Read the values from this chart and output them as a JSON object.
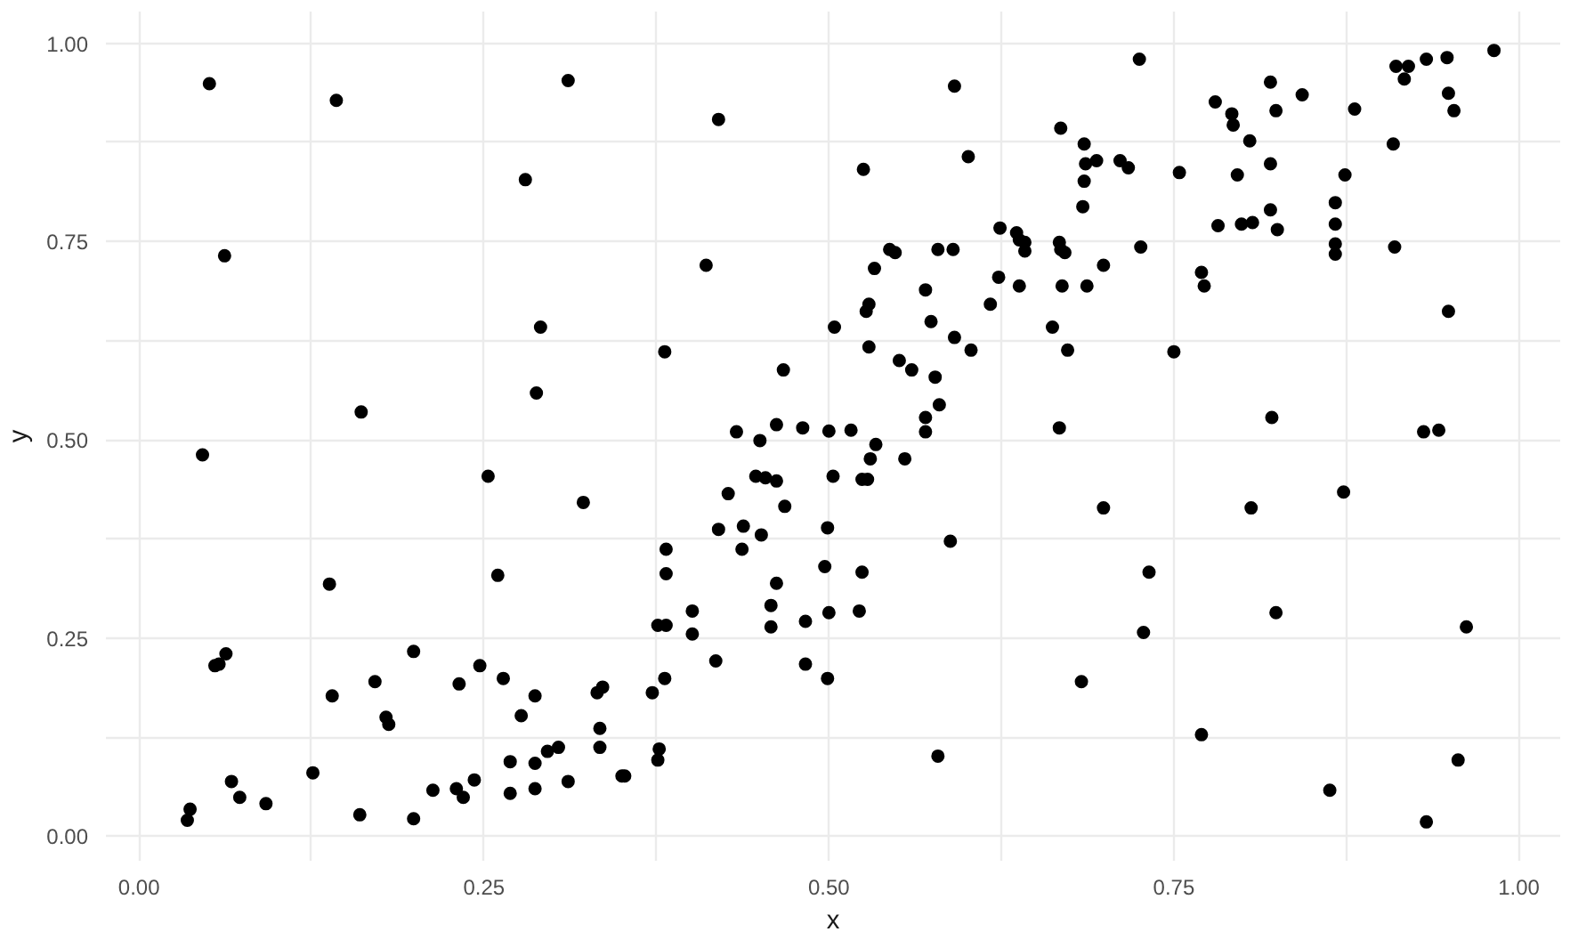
{
  "chart_data": {
    "type": "scatter",
    "xlabel": "x",
    "ylabel": "y",
    "marker": "circle",
    "grid": true,
    "xlim": [
      -0.024,
      1.03
    ],
    "ylim": [
      -0.031,
      1.04
    ],
    "xticks": [
      {
        "value": 0,
        "label": "0.00"
      },
      {
        "value": 0.125,
        "label": null
      },
      {
        "value": 0.25,
        "label": "0.25"
      },
      {
        "value": 0.375,
        "label": null
      },
      {
        "value": 0.5,
        "label": "0.50"
      },
      {
        "value": 0.625,
        "label": null
      },
      {
        "value": 0.75,
        "label": "0.75"
      },
      {
        "value": 0.875,
        "label": null
      },
      {
        "value": 1,
        "label": "1.00"
      }
    ],
    "yticks": [
      {
        "value": 0,
        "label": "0.00"
      },
      {
        "value": 0.125,
        "label": null
      },
      {
        "value": 0.25,
        "label": "0.25"
      },
      {
        "value": 0.375,
        "label": null
      },
      {
        "value": 0.5,
        "label": "0.50"
      },
      {
        "value": 0.625,
        "label": null
      },
      {
        "value": 0.75,
        "label": "0.75"
      },
      {
        "value": 0.875,
        "label": null
      },
      {
        "value": 1,
        "label": "1.00"
      }
    ],
    "series": [
      {
        "color": "#000000",
        "x": [
          0.035,
          0.037,
          0.051,
          0.143,
          0.311,
          0.28,
          0.062,
          0.291,
          0.288,
          0.161,
          0.046,
          0.253,
          0.26,
          0.322,
          0.138,
          0.055,
          0.058,
          0.063,
          0.14,
          0.171,
          0.179,
          0.181,
          0.199,
          0.232,
          0.247,
          0.264,
          0.277,
          0.287,
          0.332,
          0.336,
          0.334,
          0.334,
          0.067,
          0.073,
          0.092,
          0.126,
          0.16,
          0.199,
          0.213,
          0.23,
          0.235,
          0.243,
          0.269,
          0.269,
          0.287,
          0.287,
          0.296,
          0.304,
          0.311,
          0.433,
          0.45,
          0.462,
          0.481,
          0.5,
          0.516,
          0.57,
          0.667,
          0.534,
          0.53,
          0.555,
          0.447,
          0.454,
          0.462,
          0.503,
          0.524,
          0.528,
          0.427,
          0.468,
          0.42,
          0.438,
          0.451,
          0.499,
          0.588,
          0.382,
          0.437,
          0.382,
          0.497,
          0.524,
          0.462,
          0.401,
          0.458,
          0.483,
          0.5,
          0.522,
          0.376,
          0.382,
          0.401,
          0.458,
          0.418,
          0.483,
          0.499,
          0.381,
          0.683,
          0.372,
          0.377,
          0.376,
          0.35,
          0.352,
          0.579,
          0.591,
          0.42,
          0.668,
          0.685,
          0.686,
          0.694,
          0.685,
          0.684,
          0.525,
          0.601,
          0.624,
          0.636,
          0.638,
          0.642,
          0.642,
          0.667,
          0.668,
          0.671,
          0.544,
          0.548,
          0.579,
          0.59,
          0.533,
          0.411,
          0.57,
          0.623,
          0.638,
          0.669,
          0.687,
          0.617,
          0.527,
          0.529,
          0.504,
          0.574,
          0.662,
          0.529,
          0.591,
          0.603,
          0.673,
          0.381,
          0.551,
          0.56,
          0.467,
          0.577,
          0.58,
          0.57,
          0.725,
          0.82,
          0.78,
          0.843,
          0.792,
          0.793,
          0.824,
          0.805,
          0.881,
          0.982,
          0.911,
          0.92,
          0.917,
          0.933,
          0.948,
          0.949,
          0.953,
          0.711,
          0.717,
          0.754,
          0.796,
          0.82,
          0.909,
          0.874,
          0.782,
          0.799,
          0.807,
          0.82,
          0.825,
          0.867,
          0.867,
          0.867,
          0.867,
          0.91,
          0.726,
          0.699,
          0.77,
          0.772,
          0.949,
          0.75,
          0.821,
          0.931,
          0.942,
          0.699,
          0.732,
          0.728,
          0.806,
          0.873,
          0.824,
          0.962,
          0.77,
          0.956,
          0.863,
          0.933
        ],
        "values": [
          0.02,
          0.034,
          0.949,
          0.928,
          0.953,
          0.828,
          0.732,
          0.642,
          0.559,
          0.535,
          0.481,
          0.454,
          0.329,
          0.421,
          0.318,
          0.215,
          0.217,
          0.23,
          0.177,
          0.195,
          0.15,
          0.141,
          0.233,
          0.192,
          0.215,
          0.199,
          0.152,
          0.177,
          0.181,
          0.188,
          0.136,
          0.112,
          0.069,
          0.049,
          0.041,
          0.08,
          0.027,
          0.022,
          0.058,
          0.06,
          0.049,
          0.071,
          0.094,
          0.054,
          0.092,
          0.06,
          0.107,
          0.112,
          0.069,
          0.51,
          0.499,
          0.519,
          0.515,
          0.511,
          0.512,
          0.51,
          0.515,
          0.494,
          0.476,
          0.476,
          0.454,
          0.452,
          0.448,
          0.454,
          0.45,
          0.45,
          0.432,
          0.416,
          0.387,
          0.391,
          0.38,
          0.389,
          0.372,
          0.362,
          0.362,
          0.331,
          0.34,
          0.333,
          0.319,
          0.284,
          0.291,
          0.271,
          0.282,
          0.284,
          0.266,
          0.266,
          0.255,
          0.264,
          0.221,
          0.217,
          0.199,
          0.199,
          0.195,
          0.181,
          0.11,
          0.096,
          0.076,
          0.076,
          0.101,
          0.946,
          0.904,
          0.893,
          0.873,
          0.848,
          0.852,
          0.826,
          0.794,
          0.841,
          0.857,
          0.767,
          0.761,
          0.752,
          0.749,
          0.738,
          0.749,
          0.74,
          0.736,
          0.74,
          0.736,
          0.74,
          0.74,
          0.716,
          0.72,
          0.689,
          0.705,
          0.694,
          0.694,
          0.694,
          0.671,
          0.662,
          0.671,
          0.642,
          0.649,
          0.642,
          0.617,
          0.629,
          0.613,
          0.613,
          0.611,
          0.6,
          0.588,
          0.588,
          0.579,
          0.544,
          0.528,
          0.98,
          0.951,
          0.926,
          0.935,
          0.911,
          0.897,
          0.915,
          0.877,
          0.917,
          0.991,
          0.971,
          0.971,
          0.955,
          0.98,
          0.982,
          0.937,
          0.915,
          0.852,
          0.843,
          0.837,
          0.834,
          0.848,
          0.873,
          0.834,
          0.77,
          0.772,
          0.774,
          0.79,
          0.765,
          0.799,
          0.772,
          0.747,
          0.734,
          0.743,
          0.743,
          0.72,
          0.711,
          0.694,
          0.662,
          0.611,
          0.528,
          0.51,
          0.512,
          0.414,
          0.333,
          0.257,
          0.414,
          0.434,
          0.282,
          0.264,
          0.128,
          0.096,
          0.058,
          0.018
        ]
      }
    ]
  }
}
